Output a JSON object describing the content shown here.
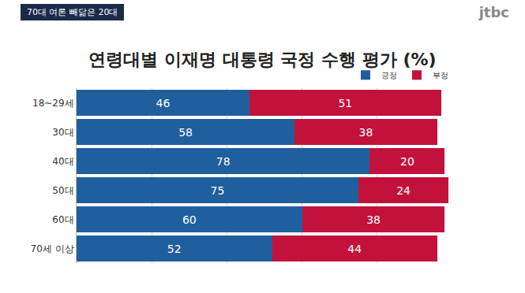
{
  "header": {
    "tag": "70대 여론 빼닮은 20대",
    "logo": "jtbc"
  },
  "chart_data": {
    "type": "bar",
    "title": "연령대별 이재명 대통령 국정 수행 평가 (%)",
    "orientation": "horizontal",
    "stacked": true,
    "data_labels": true,
    "categories": [
      "18~29세",
      "30대",
      "40대",
      "50대",
      "60대",
      "70세 이상"
    ],
    "series": [
      {
        "name": "긍정",
        "color": "#1f5f9e",
        "values": [
          46,
          58,
          78,
          75,
          60,
          52
        ]
      },
      {
        "name": "부정",
        "color": "#c2123c",
        "values": [
          51,
          38,
          20,
          24,
          38,
          44
        ]
      }
    ],
    "xlim": [
      0,
      100
    ],
    "xticks": [
      0,
      20,
      40,
      60,
      80,
      100
    ],
    "grid": true,
    "tick_labels": "y",
    "legend": "top right"
  }
}
